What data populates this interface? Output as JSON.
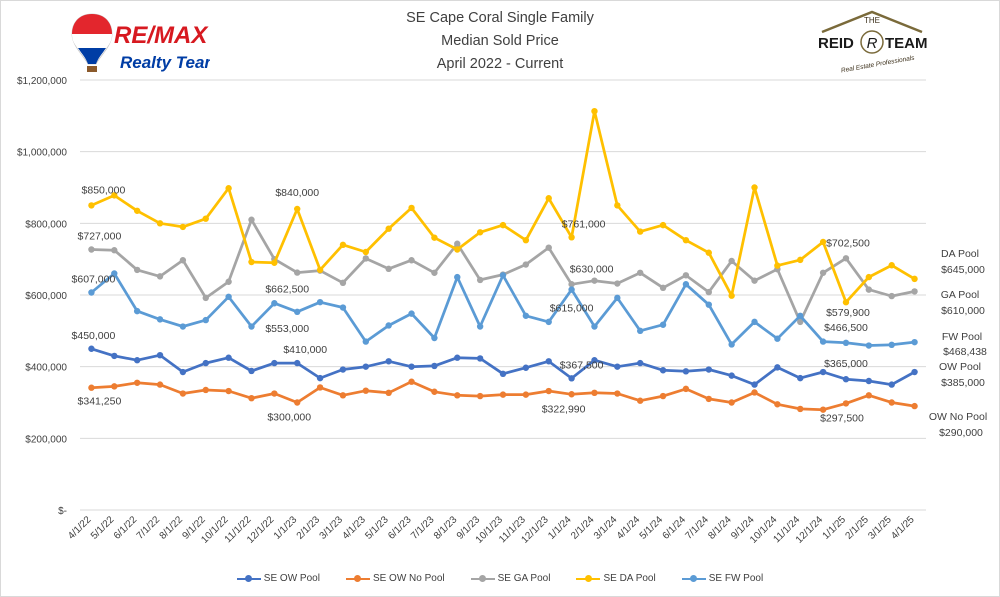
{
  "header": {
    "title_lines": [
      "SE Cape Coral Single Family",
      "Median Sold Price",
      "April 2022 - Current"
    ]
  },
  "logos": {
    "left": {
      "word": "RE/MAX",
      "tagline": "Realty Team"
    },
    "right": {
      "top": "THE",
      "name": "REID",
      "mono": "R",
      "name2": "TEAM",
      "tagline": "Real Estate Professionals"
    }
  },
  "colors": {
    "ow_pool": "#4472c4",
    "ow_no_pool": "#ed7d31",
    "ga_pool": "#a5a5a5",
    "da_pool": "#ffc000",
    "fw_pool": "#5b9bd5",
    "grid": "#d9d9d9",
    "text": "#404040"
  },
  "chart_data": {
    "type": "line",
    "title": "SE Cape Coral Single Family\nMedian Sold Price\nApril 2022 - Current",
    "xlabel": "",
    "ylabel": "",
    "ylim": [
      0,
      1200000
    ],
    "yticks": [
      0,
      200000,
      400000,
      600000,
      800000,
      1000000,
      1200000
    ],
    "ytick_labels": [
      "$-",
      "$200,000",
      "$400,000",
      "$600,000",
      "$800,000",
      "$1,000,000",
      "$1,200,000"
    ],
    "grid": true,
    "legend_position": "bottom",
    "categories": [
      "4/1/22",
      "5/1/22",
      "6/1/22",
      "7/1/22",
      "8/1/22",
      "9/1/22",
      "10/1/22",
      "11/1/22",
      "12/1/22",
      "1/1/23",
      "2/1/23",
      "3/1/23",
      "4/1/23",
      "5/1/23",
      "6/1/23",
      "7/1/23",
      "8/1/23",
      "9/1/23",
      "10/1/23",
      "11/1/23",
      "12/1/23",
      "1/1/24",
      "2/1/24",
      "3/1/24",
      "4/1/24",
      "5/1/24",
      "6/1/24",
      "7/1/24",
      "8/1/24",
      "9/1/24",
      "10/1/24",
      "11/1/24",
      "12/1/24",
      "1/1/25",
      "2/1/25",
      "3/1/25",
      "4/1/25"
    ],
    "series": [
      {
        "name": "SE OW Pool",
        "color_key": "ow_pool",
        "values": [
          450000,
          430000,
          418000,
          432000,
          385000,
          410000,
          425000,
          388000,
          410000,
          410000,
          368000,
          392000,
          400000,
          415000,
          400000,
          402000,
          425000,
          423000,
          380000,
          397000,
          415000,
          367500,
          418000,
          400000,
          410000,
          390000,
          387000,
          392000,
          375000,
          350000,
          398000,
          368000,
          385000,
          365000,
          360000,
          350000,
          385000
        ]
      },
      {
        "name": "SE OW No Pool",
        "color_key": "ow_no_pool",
        "values": [
          341250,
          345000,
          355000,
          350000,
          325000,
          335000,
          332000,
          312000,
          325000,
          300000,
          342000,
          320000,
          333000,
          327000,
          358000,
          330000,
          320000,
          318000,
          322000,
          322000,
          332000,
          322990,
          327000,
          325000,
          305000,
          318000,
          338000,
          310000,
          300000,
          328000,
          295000,
          282000,
          280000,
          297500,
          320000,
          300000,
          290000
        ]
      },
      {
        "name": "SE GA Pool",
        "color_key": "ga_pool",
        "values": [
          727000,
          725000,
          670000,
          652000,
          697000,
          592000,
          637000,
          810000,
          700000,
          662500,
          668000,
          634000,
          702000,
          673000,
          697000,
          662000,
          743000,
          642000,
          657000,
          685000,
          732000,
          630000,
          640000,
          632000,
          662000,
          620000,
          655000,
          608000,
          695000,
          640000,
          672000,
          525000,
          662000,
          702500,
          615000,
          597000,
          610000
        ]
      },
      {
        "name": "SE DA Pool",
        "color_key": "da_pool",
        "values": [
          850000,
          878000,
          835000,
          800000,
          790000,
          813000,
          898000,
          692000,
          690000,
          840000,
          670000,
          740000,
          720000,
          785000,
          843000,
          760000,
          727000,
          775000,
          795000,
          753000,
          870000,
          761000,
          1113000,
          850000,
          777000,
          795000,
          753000,
          718000,
          598000,
          900000,
          682000,
          698000,
          748000,
          579900,
          650000,
          683000,
          645000
        ]
      },
      {
        "name": "SE FW Pool",
        "color_key": "fw_pool",
        "values": [
          607000,
          660000,
          555000,
          532000,
          512000,
          530000,
          595000,
          512000,
          577000,
          553000,
          580000,
          565000,
          470000,
          515000,
          548000,
          480000,
          650000,
          512000,
          655000,
          542000,
          525000,
          615000,
          512000,
          592000,
          500000,
          517000,
          630000,
          573000,
          462000,
          525000,
          478000,
          542000,
          470000,
          466500,
          459000,
          461000,
          468438
        ]
      }
    ],
    "annotations": [
      {
        "series": 3,
        "index": 0,
        "text": "$850,000"
      },
      {
        "series": 3,
        "index": 9,
        "text": "$840,000"
      },
      {
        "series": 2,
        "index": 0,
        "text": "$727,000"
      },
      {
        "series": 4,
        "index": 0,
        "text": "$607,000"
      },
      {
        "series": 0,
        "index": 0,
        "text": "$450,000"
      },
      {
        "series": 1,
        "index": 0,
        "text": "$341,250"
      },
      {
        "series": 2,
        "index": 9,
        "text": "$662,500"
      },
      {
        "series": 4,
        "index": 9,
        "text": "$553,000"
      },
      {
        "series": 0,
        "index": 9,
        "text": "$410,000"
      },
      {
        "series": 1,
        "index": 9,
        "text": "$300,000"
      },
      {
        "series": 3,
        "index": 21,
        "text": "$761,000"
      },
      {
        "series": 2,
        "index": 21,
        "text": "$630,000"
      },
      {
        "series": 4,
        "index": 21,
        "text": "$615,000"
      },
      {
        "series": 0,
        "index": 21,
        "text": "$367,500"
      },
      {
        "series": 1,
        "index": 21,
        "text": "$322,990"
      },
      {
        "series": 2,
        "index": 33,
        "text": "$702,500"
      },
      {
        "series": 3,
        "index": 33,
        "text": "$579,900"
      },
      {
        "series": 4,
        "index": 33,
        "text": "$466,500"
      },
      {
        "series": 0,
        "index": 33,
        "text": "$365,000"
      },
      {
        "series": 1,
        "index": 33,
        "text": "$297,500"
      }
    ],
    "end_labels": [
      {
        "series": 3,
        "name": "DA Pool",
        "value": "$645,000"
      },
      {
        "series": 2,
        "name": "GA Pool",
        "value": "$610,000"
      },
      {
        "series": 4,
        "name": "FW Pool",
        "value": "$468,438"
      },
      {
        "series": 0,
        "name": "OW Pool",
        "value": "$385,000"
      },
      {
        "series": 1,
        "name": "OW No Pool",
        "value": "$290,000"
      }
    ]
  }
}
